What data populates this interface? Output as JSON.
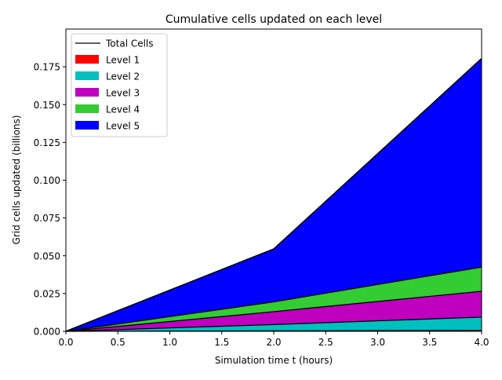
{
  "chart_data": {
    "type": "area",
    "title": "Cumulative cells updated on each level",
    "xlabel": "Simulation time t (hours)",
    "ylabel": "Grid cells updated (billions)",
    "xlim": [
      0,
      4
    ],
    "ylim": [
      0,
      0.2
    ],
    "x": [
      0,
      2,
      4
    ],
    "xticks": [
      "0.0",
      "0.5",
      "1.0",
      "1.5",
      "2.0",
      "2.5",
      "3.0",
      "3.5",
      "4.0"
    ],
    "yticks": [
      "0.000",
      "0.025",
      "0.050",
      "0.075",
      "0.100",
      "0.125",
      "0.150",
      "0.175"
    ],
    "stacked": true,
    "grid": false,
    "legend_position": "top-left",
    "series": [
      {
        "name": "Level 1",
        "color": "#ff0000",
        "values": [
          0,
          0.0003,
          0.0006
        ]
      },
      {
        "name": "Level 2",
        "color": "#00bfbf",
        "values": [
          0,
          0.0042,
          0.0088
        ]
      },
      {
        "name": "Level 3",
        "color": "#bf00bf",
        "values": [
          0,
          0.0085,
          0.0171
        ]
      },
      {
        "name": "Level 4",
        "color": "#33cc33",
        "values": [
          0,
          0.0065,
          0.016
        ]
      },
      {
        "name": "Level 5",
        "color": "#0000ff",
        "values": [
          0,
          0.035,
          0.138
        ]
      }
    ],
    "total": {
      "name": "Total Cells",
      "color": "#000000",
      "values": [
        0,
        0.0545,
        0.1805
      ]
    }
  }
}
